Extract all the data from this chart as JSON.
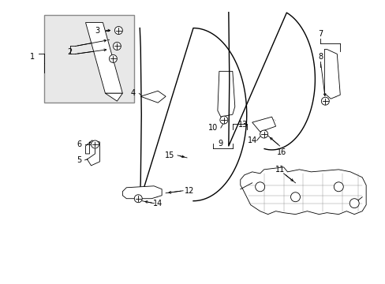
{
  "bg_color": "#ffffff",
  "line_color": "#000000",
  "box_bg": "#e8e8e8",
  "lw_main": 1.0,
  "lw_thin": 0.6,
  "fig_w": 4.89,
  "fig_h": 3.6,
  "dpi": 100
}
